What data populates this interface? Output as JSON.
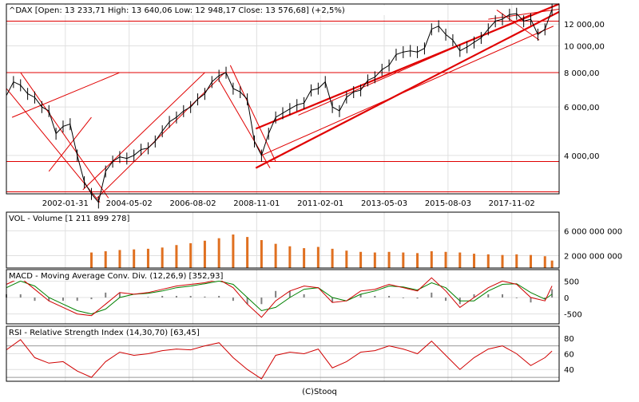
{
  "colors": {
    "price": "#000000",
    "trend": "#e00000",
    "volume": "#e07020",
    "macd": "#d00000",
    "signal": "#008000",
    "hist": "#808080",
    "rsi": "#d00000",
    "grid": "#e0e0e0",
    "up_marker": "#2a8a00",
    "down_marker": "#e00000",
    "wave_label": "#d00000",
    "wave_label_major": "#4b0dbf"
  },
  "footer": "(C)Stooq",
  "chart_data": [
    {
      "type": "line",
      "title": "^DAX [Open: 13 233,71  High: 13 640,06  Low: 12 948,17  Close: 13 576,68] (+2,5%)",
      "yscale": "log",
      "ylim": [
        2900,
        14200
      ],
      "xlim": [
        2000.0,
        2019.5
      ],
      "grid": "on",
      "yticks": [
        {
          "v": 12000,
          "label": "12 000,00"
        },
        {
          "v": 10000,
          "label": "10 000,00"
        },
        {
          "v": 8000,
          "label": "8 000,00"
        },
        {
          "v": 6000,
          "label": "6 000,00"
        },
        {
          "v": 4000,
          "label": "4 000,00"
        }
      ],
      "xticks": [
        {
          "x": 2002.08,
          "label": "2002-01-31"
        },
        {
          "x": 2004.33,
          "label": "2004-05-02"
        },
        {
          "x": 2006.58,
          "label": "2006-08-02"
        },
        {
          "x": 2008.83,
          "label": "2008-11-01"
        },
        {
          "x": 2011.08,
          "label": "2011-02-01"
        },
        {
          "x": 2013.33,
          "label": "2013-05-03"
        },
        {
          "x": 2015.58,
          "label": "2015-08-03"
        },
        {
          "x": 2017.83,
          "label": "2017-11-02"
        }
      ],
      "x": [
        2000.0,
        2000.25,
        2000.5,
        2000.75,
        2001.0,
        2001.25,
        2001.5,
        2001.75,
        2002.0,
        2002.25,
        2002.5,
        2002.75,
        2003.0,
        2003.25,
        2003.5,
        2003.75,
        2004.0,
        2004.25,
        2004.5,
        2004.75,
        2005.0,
        2005.25,
        2005.5,
        2005.75,
        2006.0,
        2006.25,
        2006.5,
        2006.75,
        2007.0,
        2007.25,
        2007.5,
        2007.75,
        2008.0,
        2008.25,
        2008.5,
        2008.75,
        2009.0,
        2009.25,
        2009.5,
        2009.75,
        2010.0,
        2010.25,
        2010.5,
        2010.75,
        2011.0,
        2011.25,
        2011.5,
        2011.75,
        2012.0,
        2012.25,
        2012.5,
        2012.75,
        2013.0,
        2013.25,
        2013.5,
        2013.75,
        2014.0,
        2014.25,
        2014.5,
        2014.75,
        2015.0,
        2015.25,
        2015.5,
        2015.75,
        2016.0,
        2016.25,
        2016.5,
        2016.75,
        2017.0,
        2017.25,
        2017.5,
        2017.75,
        2018.0,
        2018.25,
        2018.5,
        2018.75,
        2019.0,
        2019.25
      ],
      "values": [
        6600,
        7400,
        7200,
        6700,
        6500,
        6000,
        5800,
        4800,
        5100,
        5200,
        4000,
        3200,
        2900,
        2700,
        3500,
        3800,
        3950,
        3900,
        4000,
        4200,
        4250,
        4500,
        4900,
        5300,
        5500,
        5800,
        6000,
        6400,
        6700,
        7400,
        7800,
        8000,
        7000,
        6800,
        6400,
        4500,
        4000,
        4800,
        5500,
        5700,
        5900,
        6100,
        6200,
        6900,
        7000,
        7400,
        6000,
        5800,
        6500,
        6800,
        6900,
        7500,
        7700,
        8200,
        8500,
        9300,
        9500,
        9600,
        9500,
        9800,
        11500,
        11800,
        11000,
        10500,
        9600,
        9900,
        10300,
        10700,
        11500,
        12300,
        12500,
        13000,
        13100,
        12300,
        12500,
        11000,
        11500,
        13576
      ]
    },
    {
      "type": "bar",
      "title": "VOL - Volume [1 211 899 278]",
      "ylim": [
        0,
        9000000000
      ],
      "yticks": [
        {
          "v": 6000000000,
          "label": "6 000 000 000"
        },
        {
          "v": 2000000000,
          "label": "2 000 000 000"
        }
      ],
      "x": [
        2003.0,
        2003.5,
        2004.0,
        2004.5,
        2005.0,
        2005.5,
        2006.0,
        2006.5,
        2007.0,
        2007.5,
        2008.0,
        2008.5,
        2009.0,
        2009.5,
        2010.0,
        2010.5,
        2011.0,
        2011.5,
        2012.0,
        2012.5,
        2013.0,
        2013.5,
        2014.0,
        2014.5,
        2015.0,
        2015.5,
        2016.0,
        2016.5,
        2017.0,
        2017.5,
        2018.0,
        2018.5,
        2019.0,
        2019.25
      ],
      "values": [
        2500000000,
        2700000000,
        2900000000,
        3000000000,
        3100000000,
        3300000000,
        3700000000,
        4000000000,
        4400000000,
        4800000000,
        5400000000,
        5000000000,
        4500000000,
        3900000000,
        3500000000,
        3200000000,
        3400000000,
        3100000000,
        2800000000,
        2600000000,
        2500000000,
        2600000000,
        2500000000,
        2400000000,
        2700000000,
        2600000000,
        2500000000,
        2300000000,
        2200000000,
        2100000000,
        2200000000,
        2100000000,
        1900000000,
        1200000000
      ]
    },
    {
      "type": "line",
      "title": "MACD - Moving Average Conv. Div. (12,26,9) [352,93]",
      "ylim": [
        -800,
        850
      ],
      "yticks": [
        {
          "v": 500,
          "label": "500"
        },
        {
          "v": 0,
          "label": "0"
        },
        {
          "v": -500,
          "label": "-500"
        }
      ],
      "x": [
        2000.0,
        2000.5,
        2001.0,
        2001.5,
        2002.0,
        2002.5,
        2003.0,
        2003.5,
        2004.0,
        2004.5,
        2005.0,
        2005.5,
        2006.0,
        2006.5,
        2007.0,
        2007.5,
        2008.0,
        2008.5,
        2009.0,
        2009.5,
        2010.0,
        2010.5,
        2011.0,
        2011.5,
        2012.0,
        2012.5,
        2013.0,
        2013.5,
        2014.0,
        2014.5,
        2015.0,
        2015.5,
        2016.0,
        2016.5,
        2017.0,
        2017.5,
        2018.0,
        2018.5,
        2019.0,
        2019.25
      ],
      "series": [
        {
          "values": [
            400,
            600,
            250,
            -100,
            -300,
            -500,
            -550,
            -200,
            150,
            100,
            150,
            250,
            350,
            400,
            450,
            550,
            300,
            -200,
            -600,
            -100,
            200,
            350,
            300,
            -150,
            -100,
            200,
            250,
            400,
            300,
            200,
            600,
            200,
            -300,
            0,
            300,
            500,
            400,
            0,
            -100,
            353
          ]
        },
        {
          "values": [
            300,
            500,
            350,
            0,
            -200,
            -400,
            -500,
            -350,
            0,
            100,
            130,
            200,
            300,
            350,
            420,
            500,
            400,
            0,
            -400,
            -300,
            0,
            250,
            300,
            0,
            -100,
            100,
            200,
            350,
            320,
            230,
            450,
            300,
            -100,
            -100,
            200,
            400,
            420,
            150,
            -50,
            100
          ]
        }
      ]
    },
    {
      "type": "line",
      "title": "RSI - Relative Strength Index (14,30,70) [63,45]",
      "ylim": [
        25,
        95
      ],
      "yticks": [
        {
          "v": 80,
          "label": "80"
        },
        {
          "v": 60,
          "label": "60"
        },
        {
          "v": 40,
          "label": "40"
        }
      ],
      "x": [
        2000.0,
        2000.5,
        2001.0,
        2001.5,
        2002.0,
        2002.5,
        2003.0,
        2003.5,
        2004.0,
        2004.5,
        2005.0,
        2005.5,
        2006.0,
        2006.5,
        2007.0,
        2007.5,
        2008.0,
        2008.5,
        2009.0,
        2009.5,
        2010.0,
        2010.5,
        2011.0,
        2011.5,
        2012.0,
        2012.5,
        2013.0,
        2013.5,
        2014.0,
        2014.5,
        2015.0,
        2015.5,
        2016.0,
        2016.5,
        2017.0,
        2017.5,
        2018.0,
        2018.5,
        2019.0,
        2019.25
      ],
      "values": [
        65,
        78,
        55,
        48,
        50,
        38,
        30,
        50,
        62,
        58,
        60,
        64,
        66,
        65,
        70,
        74,
        55,
        40,
        28,
        58,
        62,
        60,
        66,
        42,
        50,
        62,
        64,
        70,
        66,
        60,
        76,
        58,
        40,
        55,
        66,
        70,
        60,
        45,
        55,
        63.45
      ]
    }
  ]
}
